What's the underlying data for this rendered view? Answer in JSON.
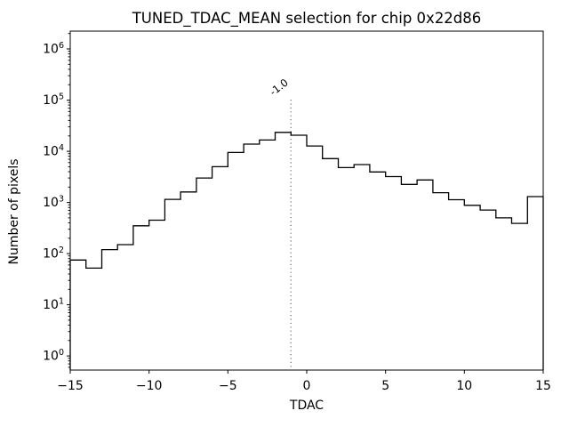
{
  "chart_data": {
    "type": "bar",
    "histtype": "step",
    "title": "TUNED_TDAC_MEAN selection for chip 0x22d86",
    "xlabel": "TDAC",
    "ylabel": "Number of pixels",
    "yscale": "log",
    "xlim": [
      -15,
      15
    ],
    "ylim": [
      0.53,
      2230000
    ],
    "bin_edges": [
      -15,
      -14,
      -13,
      -12,
      -11,
      -10,
      -9,
      -8,
      -7,
      -6,
      -5,
      -4,
      -3,
      -2,
      -1,
      0,
      1,
      2,
      3,
      4,
      5,
      6,
      7,
      8,
      9,
      10,
      11,
      12,
      13,
      14,
      15
    ],
    "counts": [
      75,
      52,
      120,
      150,
      350,
      450,
      1150,
      1600,
      3000,
      5000,
      9500,
      13800,
      16600,
      23400,
      20600,
      12700,
      7200,
      4800,
      5500,
      3950,
      3200,
      2250,
      2750,
      1550,
      1130,
      880,
      710,
      500,
      390,
      1300
    ],
    "x_tick_values": [
      -15,
      -10,
      -5,
      0,
      5,
      10,
      15
    ],
    "x_tick_labels": [
      "−15",
      "−10",
      "−5",
      "0",
      "5",
      "10",
      "15"
    ],
    "y_tick_exponents": [
      0,
      1,
      2,
      3,
      4,
      5,
      6
    ],
    "line_color": "#000000",
    "axes_color": "#000000",
    "background_color": "#ffffff",
    "legend": "none",
    "grid": "off",
    "vline": {
      "x": -1.0,
      "label": "-1.0",
      "color": "#888888",
      "style": "dotted"
    }
  }
}
